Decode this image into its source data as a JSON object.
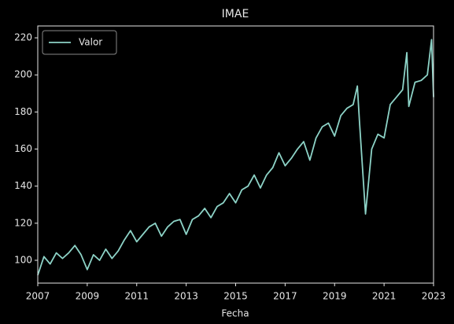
{
  "chart_data": {
    "type": "line",
    "title": "IMAE",
    "xlabel": "Fecha",
    "x": [
      2007.0,
      2007.25,
      2007.5,
      2007.75,
      2008.0,
      2008.25,
      2008.5,
      2008.75,
      2009.0,
      2009.25,
      2009.5,
      2009.75,
      2010.0,
      2010.25,
      2010.5,
      2010.75,
      2011.0,
      2011.25,
      2011.5,
      2011.75,
      2012.0,
      2012.25,
      2012.5,
      2012.75,
      2013.0,
      2013.25,
      2013.5,
      2013.75,
      2014.0,
      2014.25,
      2014.5,
      2014.75,
      2015.0,
      2015.25,
      2015.5,
      2015.75,
      2016.0,
      2016.25,
      2016.5,
      2016.75,
      2017.0,
      2017.25,
      2017.5,
      2017.75,
      2018.0,
      2018.25,
      2018.5,
      2018.75,
      2019.0,
      2019.25,
      2019.5,
      2019.75,
      2019.92,
      2020.0,
      2020.25,
      2020.5,
      2020.75,
      2021.0,
      2021.25,
      2021.5,
      2021.75,
      2021.92,
      2022.0,
      2022.25,
      2022.5,
      2022.75,
      2022.92,
      2023.0
    ],
    "series": [
      {
        "name": "Valor",
        "color": "#8dd3c7",
        "values": [
          92,
          102,
          98,
          104,
          101,
          104,
          108,
          103,
          95,
          103,
          100,
          106,
          101,
          105,
          111,
          116,
          110,
          114,
          118,
          120,
          113,
          118,
          121,
          122,
          114,
          122,
          124,
          128,
          123,
          129,
          131,
          136,
          131,
          138,
          140,
          146,
          139,
          146,
          150,
          158,
          151,
          155,
          160,
          164,
          154,
          166,
          172,
          174,
          167,
          178,
          182,
          184,
          194,
          176,
          125,
          160,
          168,
          166,
          184,
          188,
          192,
          212,
          183,
          196,
          197,
          200,
          219,
          188
        ]
      }
    ],
    "xlim": [
      2007,
      2023
    ],
    "xticks": [
      2007,
      2009,
      2011,
      2013,
      2015,
      2017,
      2019,
      2021,
      2023
    ],
    "ylim": [
      87.7,
      226.4
    ],
    "yticks": [
      100,
      120,
      140,
      160,
      180,
      200,
      220
    ],
    "legend": "upper left"
  }
}
